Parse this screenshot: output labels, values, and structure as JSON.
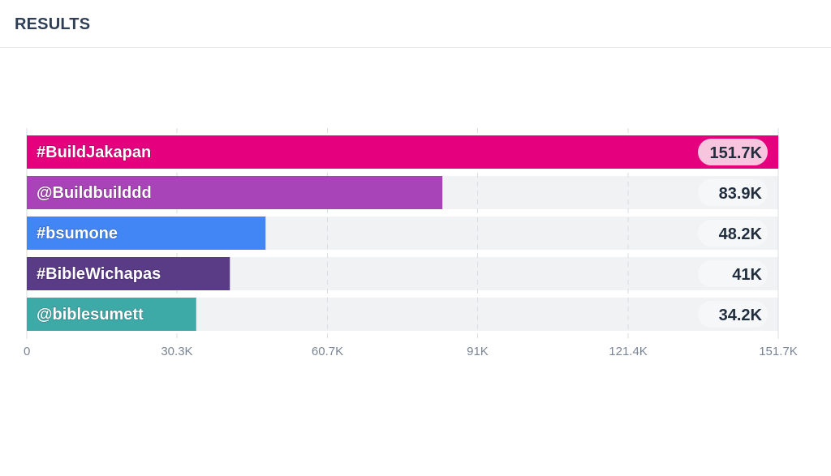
{
  "header": {
    "title": "RESULTS"
  },
  "colors": {
    "track": "#f1f2f4",
    "grid": "#d9dde2",
    "badge_default": "#f6f7f8",
    "badge_top": "#f7c6de"
  },
  "chart_data": {
    "type": "bar",
    "orientation": "horizontal",
    "title": "RESULTS",
    "xlim": [
      0,
      151.7
    ],
    "units": "K",
    "grid": true,
    "categories": [
      "#BuildJakapan",
      "@Buildbuilddd",
      "#bsumone",
      "#BibleWichapas",
      "@biblesumett"
    ],
    "values": [
      151.7,
      83.9,
      48.2,
      41,
      34.2
    ],
    "value_labels": [
      "151.7K",
      "83.9K",
      "48.2K",
      "41K",
      "34.2K"
    ],
    "bar_colors": [
      "#e5007e",
      "#a944b8",
      "#4285f4",
      "#5a3b86",
      "#3eaaa8"
    ],
    "tick_values": [
      0,
      30.3,
      60.7,
      91,
      121.4,
      151.7
    ],
    "tick_labels": [
      "0",
      "30.3K",
      "60.7K",
      "91K",
      "121.4K",
      "151.7K"
    ]
  }
}
